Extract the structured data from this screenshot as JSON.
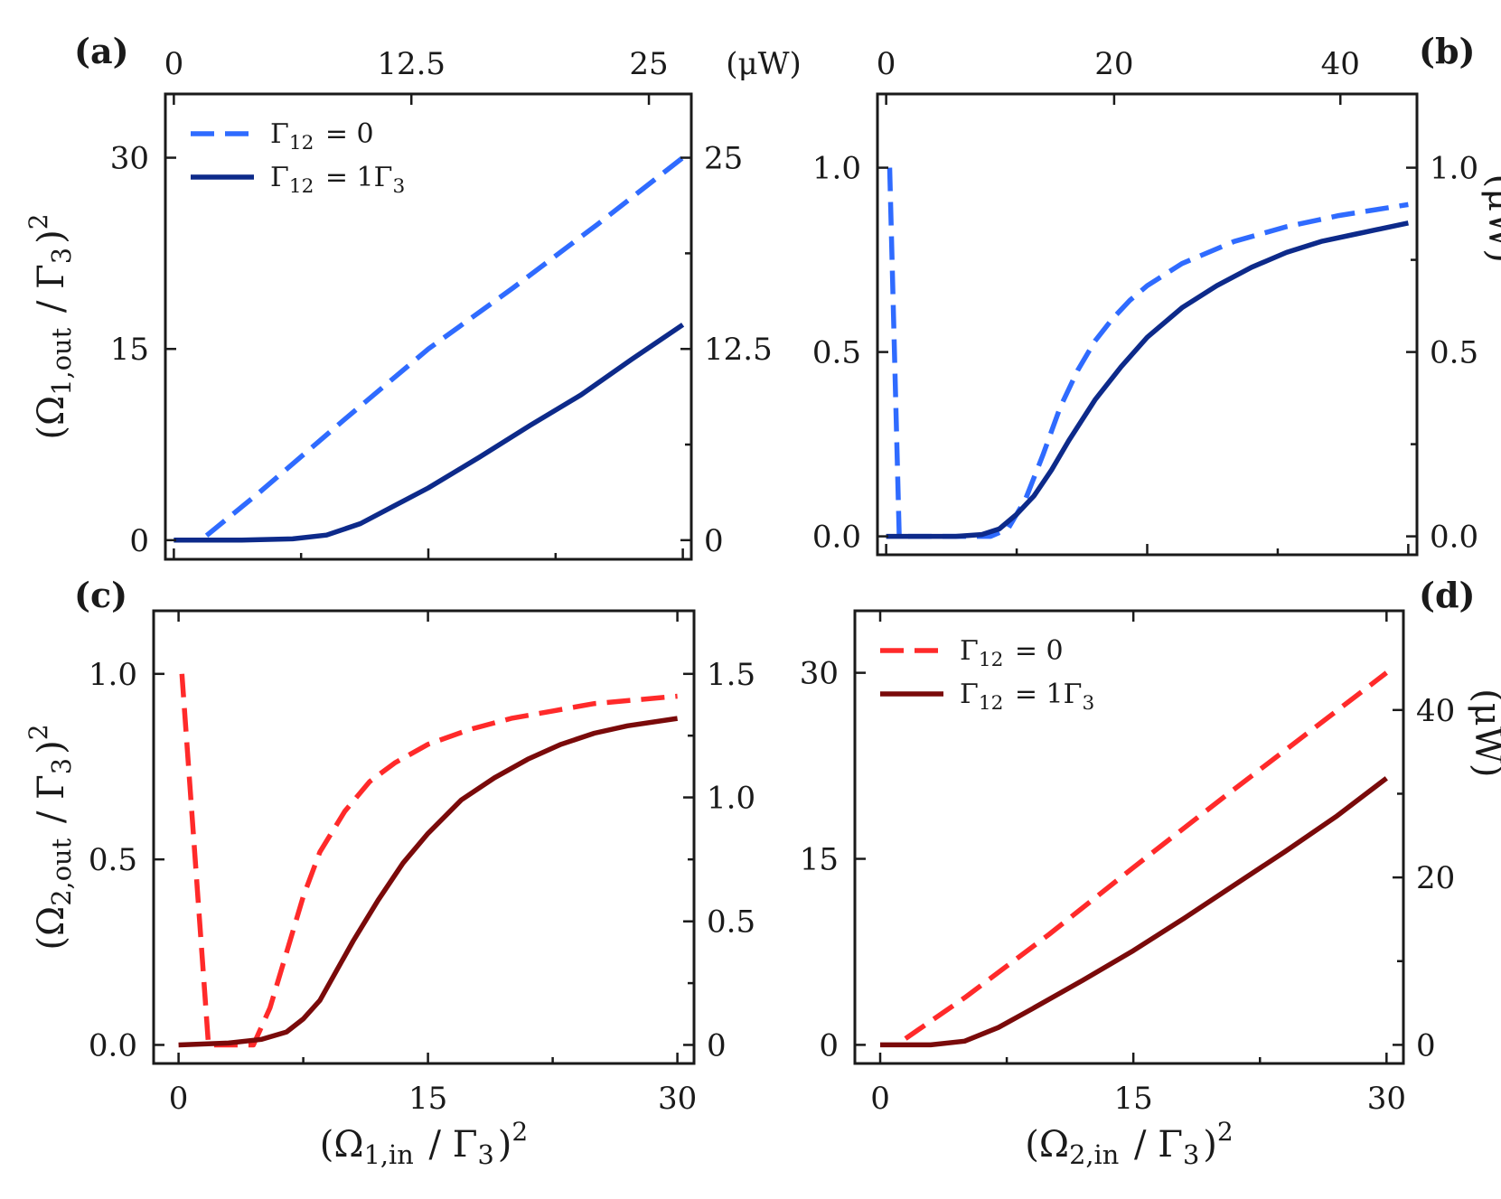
{
  "chart_data": [
    {
      "id": "a",
      "type": "line",
      "panel_label": "(a)",
      "ylabel": "(Ω1,out / Γ3)²",
      "xlabel": "",
      "xlim": [
        -0.5,
        30.5
      ],
      "ylim": [
        -1.5,
        35
      ],
      "y_ticks": [
        0,
        15,
        30
      ],
      "y_tick_labels": [
        "0",
        "15",
        "30"
      ],
      "x_ticks": [
        0,
        15,
        30
      ],
      "x_tick_labels": [],
      "top_axis": {
        "label": "(μW)",
        "ticks": [
          0,
          14.0,
          28.0
        ],
        "tick_labels": [
          "0",
          "12.5",
          "25"
        ]
      },
      "right_axis": {
        "label": "",
        "ticks": [
          0,
          15,
          30
        ],
        "tick_labels": [
          "0",
          "12.5",
          "25"
        ]
      },
      "legend": {
        "position": "top-left",
        "entries": [
          "Γ12 = 0",
          "Γ12 = 1Γ3"
        ]
      },
      "series": [
        {
          "name": "Γ12 = 0",
          "style": "dashed",
          "color": "#2f6bff",
          "points": [
            [
              0.0,
              0.0
            ],
            [
              1.6,
              0.0
            ],
            [
              5,
              3.7
            ],
            [
              10,
              9.4
            ],
            [
              15,
              15.0
            ],
            [
              20,
              19.8
            ],
            [
              25,
              24.8
            ],
            [
              30,
              30.0
            ]
          ]
        },
        {
          "name": "Γ12 = 1Γ3",
          "style": "solid",
          "color": "#0d2a8a",
          "points": [
            [
              0,
              0.0
            ],
            [
              4,
              0.0
            ],
            [
              7,
              0.1
            ],
            [
              9,
              0.4
            ],
            [
              11,
              1.3
            ],
            [
              13,
              2.7
            ],
            [
              15,
              4.1
            ],
            [
              18,
              6.5
            ],
            [
              21,
              9.0
            ],
            [
              24,
              11.4
            ],
            [
              27,
              14.2
            ],
            [
              30,
              16.9
            ]
          ]
        }
      ]
    },
    {
      "id": "b",
      "type": "line",
      "panel_label": "(b)",
      "ylabel": "",
      "xlabel": "",
      "xlim": [
        -0.5,
        30.5
      ],
      "ylim": [
        -0.05,
        1.2
      ],
      "y_ticks": [
        0.0,
        0.5,
        1.0
      ],
      "y_tick_labels": [
        "0.0",
        "0.5",
        "1.0"
      ],
      "x_ticks": [
        0,
        15,
        30
      ],
      "x_tick_labels": [],
      "top_axis": {
        "label": "",
        "ticks": [
          0,
          13.1,
          26.1
        ],
        "tick_labels": [
          "0",
          "20",
          "40"
        ]
      },
      "right_axis": {
        "label": "(μW)",
        "ticks": [
          0.0,
          0.5,
          1.0
        ],
        "tick_labels": [
          "0.0",
          "0.5",
          "1.0"
        ]
      },
      "legend": null,
      "series": [
        {
          "name": "Γ12 = 0",
          "style": "dashed",
          "color": "#2f6bff",
          "points": [
            [
              0.2,
              1.0
            ],
            [
              0.75,
              0.0
            ],
            [
              6,
              0.0
            ],
            [
              7,
              0.02
            ],
            [
              8,
              0.1
            ],
            [
              9,
              0.22
            ],
            [
              10,
              0.35
            ],
            [
              11,
              0.45
            ],
            [
              12,
              0.53
            ],
            [
              13,
              0.59
            ],
            [
              14,
              0.64
            ],
            [
              15,
              0.68
            ],
            [
              17,
              0.74
            ],
            [
              20,
              0.8
            ],
            [
              23,
              0.84
            ],
            [
              26,
              0.87
            ],
            [
              30,
              0.9
            ]
          ]
        },
        {
          "name": "Γ12 = 1Γ3",
          "style": "solid",
          "color": "#0d2a8a",
          "points": [
            [
              0,
              0.0
            ],
            [
              4,
              0.0
            ],
            [
              5.5,
              0.005
            ],
            [
              6.5,
              0.02
            ],
            [
              7.5,
              0.06
            ],
            [
              8.5,
              0.11
            ],
            [
              9.5,
              0.18
            ],
            [
              10.5,
              0.26
            ],
            [
              12,
              0.37
            ],
            [
              13.5,
              0.46
            ],
            [
              15,
              0.54
            ],
            [
              17,
              0.62
            ],
            [
              19,
              0.68
            ],
            [
              21,
              0.73
            ],
            [
              23,
              0.77
            ],
            [
              25,
              0.8
            ],
            [
              27,
              0.82
            ],
            [
              30,
              0.85
            ]
          ]
        }
      ]
    },
    {
      "id": "c",
      "type": "line",
      "panel_label": "(c)",
      "ylabel": "(Ω2,out / Γ3)²",
      "xlabel": "(Ω1,in / Γ3)²",
      "xlim": [
        -1.5,
        31
      ],
      "ylim": [
        -0.05,
        1.17
      ],
      "y_ticks": [
        0.0,
        0.5,
        1.0
      ],
      "y_tick_labels": [
        "0.0",
        "0.5",
        "1.0"
      ],
      "x_ticks": [
        0,
        15,
        30
      ],
      "x_tick_labels": [
        "0",
        "15",
        "30"
      ],
      "top_axis": null,
      "right_axis": {
        "label": "",
        "ticks": [
          0.0,
          0.333,
          0.667,
          1.0
        ],
        "tick_labels": [
          "0",
          "0.5",
          "1.0",
          "1.5"
        ]
      },
      "legend": null,
      "series": [
        {
          "name": "Γ12 = 0",
          "style": "dashed",
          "color": "#ff2a2a",
          "points": [
            [
              0.2,
              1.0
            ],
            [
              1.8,
              0.0
            ],
            [
              4.5,
              0.0
            ],
            [
              5.5,
              0.1
            ],
            [
              6.5,
              0.25
            ],
            [
              7.5,
              0.4
            ],
            [
              8.5,
              0.52
            ],
            [
              10,
              0.63
            ],
            [
              11.5,
              0.71
            ],
            [
              13,
              0.76
            ],
            [
              15,
              0.81
            ],
            [
              17.5,
              0.85
            ],
            [
              20,
              0.88
            ],
            [
              22.5,
              0.9
            ],
            [
              25,
              0.92
            ],
            [
              27.5,
              0.93
            ],
            [
              30,
              0.94
            ]
          ]
        },
        {
          "name": "Γ12 = 1Γ3",
          "style": "solid",
          "color": "#7a0a0a",
          "points": [
            [
              0,
              0.0
            ],
            [
              3,
              0.005
            ],
            [
              5,
              0.015
            ],
            [
              6.5,
              0.035
            ],
            [
              7.5,
              0.07
            ],
            [
              8.5,
              0.12
            ],
            [
              9.5,
              0.2
            ],
            [
              10.5,
              0.28
            ],
            [
              12,
              0.39
            ],
            [
              13.5,
              0.49
            ],
            [
              15,
              0.57
            ],
            [
              17,
              0.66
            ],
            [
              19,
              0.72
            ],
            [
              21,
              0.77
            ],
            [
              23,
              0.81
            ],
            [
              25,
              0.84
            ],
            [
              27,
              0.86
            ],
            [
              30,
              0.88
            ]
          ]
        }
      ]
    },
    {
      "id": "d",
      "type": "line",
      "panel_label": "(d)",
      "ylabel": "",
      "xlabel": "(Ω2,in / Γ3)²",
      "xlim": [
        -1.5,
        31
      ],
      "ylim": [
        -1.5,
        35
      ],
      "y_ticks": [
        0,
        15,
        30
      ],
      "y_tick_labels": [
        "0",
        "15",
        "30"
      ],
      "x_ticks": [
        0,
        15,
        30
      ],
      "x_tick_labels": [
        "0",
        "15",
        "30"
      ],
      "top_axis": null,
      "right_axis": {
        "label": "(μW)",
        "ticks": [
          0,
          13.5,
          27.0
        ],
        "tick_labels": [
          "0",
          "20",
          "40"
        ]
      },
      "legend": {
        "position": "top-left",
        "entries": [
          "Γ12 = 0",
          "Γ12 = 1Γ3"
        ]
      },
      "series": [
        {
          "name": "Γ12 = 0",
          "style": "dashed",
          "color": "#ff2a2a",
          "points": [
            [
              1.5,
              0.5
            ],
            [
              5,
              3.8
            ],
            [
              10,
              8.9
            ],
            [
              15,
              14.3
            ],
            [
              20,
              19.6
            ],
            [
              25,
              24.8
            ],
            [
              30,
              30.0
            ]
          ]
        },
        {
          "name": "Γ12 = 1Γ3",
          "style": "solid",
          "color": "#7a0a0a",
          "points": [
            [
              0,
              0.0
            ],
            [
              3,
              0.0
            ],
            [
              5,
              0.3
            ],
            [
              7,
              1.4
            ],
            [
              9,
              2.9
            ],
            [
              12,
              5.2
            ],
            [
              15,
              7.6
            ],
            [
              18,
              10.2
            ],
            [
              21,
              12.9
            ],
            [
              24,
              15.6
            ],
            [
              27,
              18.4
            ],
            [
              30,
              21.5
            ]
          ]
        }
      ]
    }
  ]
}
